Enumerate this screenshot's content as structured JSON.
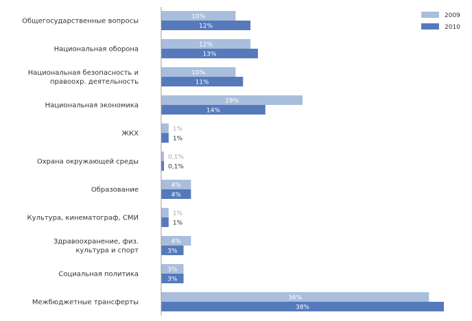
{
  "chart_data": {
    "type": "bar",
    "orientation": "horizontal",
    "categories": [
      [
        "Общегосударственные вопросы"
      ],
      [
        "Национальная оборона"
      ],
      [
        "Национальная безопасность и",
        "правоохр. деятельность"
      ],
      [
        "Национальная экономика"
      ],
      [
        "ЖКХ"
      ],
      [
        "Охрана окружающей среды"
      ],
      [
        "Образование"
      ],
      [
        "Культура, кинематограф, СМИ"
      ],
      [
        "Здравоохранение, физ.",
        "культура и спорт"
      ],
      [
        "Социальная политика"
      ],
      [
        "Межбюджетные трансферты"
      ]
    ],
    "series": [
      {
        "name": "2009",
        "color": "#a9bedc",
        "values": [
          10,
          12,
          10,
          19,
          1,
          0.1,
          4,
          1,
          4,
          3,
          36
        ],
        "labels": [
          "10%",
          "12%",
          "10%",
          "19%",
          "1%",
          "0,1%",
          "4%",
          "1%",
          "4%",
          "3%",
          "36%"
        ]
      },
      {
        "name": "2010",
        "color": "#5579bb",
        "values": [
          12,
          13,
          11,
          14,
          1,
          0.1,
          4,
          1,
          3,
          3,
          38
        ],
        "labels": [
          "12%",
          "13%",
          "11%",
          "14%",
          "1%",
          "0,1%",
          "4%",
          "1%",
          "3%",
          "3%",
          "38%"
        ]
      }
    ],
    "xlim": [
      0,
      38
    ],
    "legend": "top-right",
    "grid": false
  }
}
